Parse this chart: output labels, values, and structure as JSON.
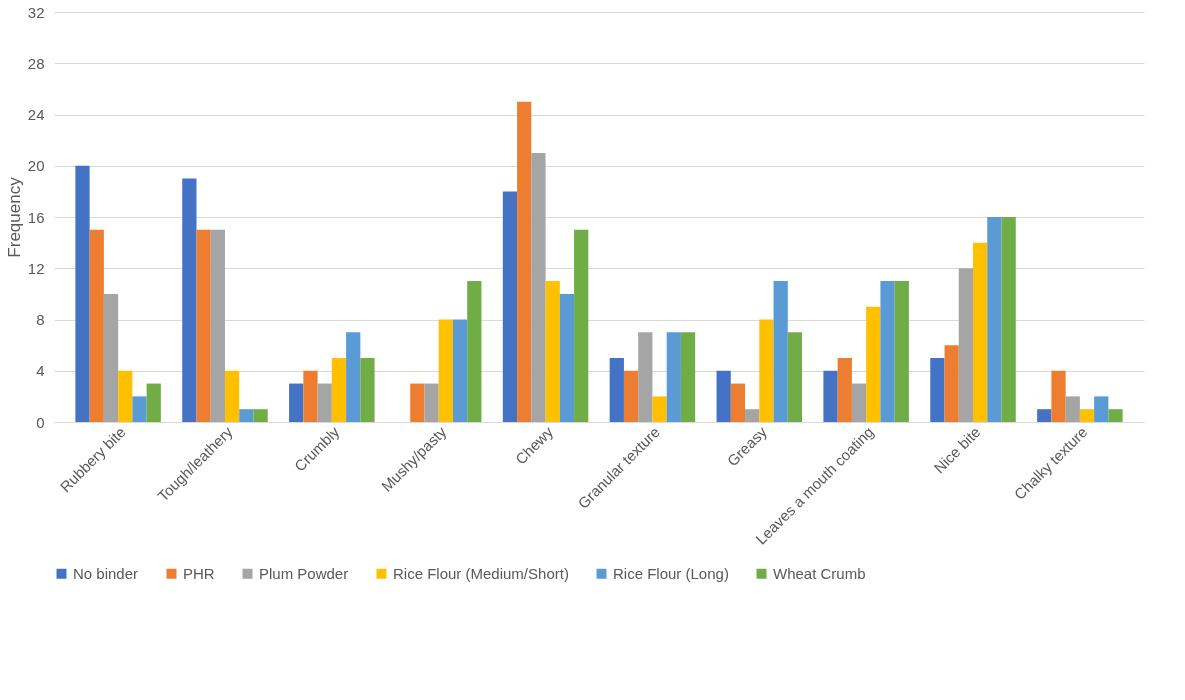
{
  "chart_data": {
    "type": "bar",
    "ylabel": "Frequency",
    "categories": [
      "Rubbery bite",
      "Tough/leathery",
      "Crumbly",
      "Mushy/pasty",
      "Chewy",
      "Granular texture",
      "Greasy",
      "Leaves a mouth coating",
      "Nice bite",
      "Chalky texture"
    ],
    "series": [
      {
        "name": "No binder",
        "color": "#4472c4",
        "values": [
          20,
          19,
          3,
          0,
          18,
          5,
          4,
          4,
          5,
          1
        ]
      },
      {
        "name": "PHR",
        "color": "#ed7d31",
        "values": [
          15,
          15,
          4,
          3,
          25,
          4,
          3,
          5,
          6,
          4
        ]
      },
      {
        "name": "Plum Powder",
        "color": "#a5a5a5",
        "values": [
          10,
          15,
          3,
          3,
          21,
          7,
          1,
          3,
          12,
          2
        ]
      },
      {
        "name": "Rice Flour (Medium/Short)",
        "color": "#ffc000",
        "values": [
          4,
          4,
          5,
          8,
          11,
          2,
          8,
          9,
          14,
          1
        ]
      },
      {
        "name": "Rice Flour (Long)",
        "color": "#5b9bd5",
        "values": [
          2,
          1,
          7,
          8,
          10,
          7,
          11,
          11,
          16,
          2
        ]
      },
      {
        "name": "Wheat Crumb",
        "color": "#70ad47",
        "values": [
          3,
          1,
          5,
          11,
          15,
          7,
          7,
          11,
          16,
          1
        ]
      }
    ],
    "ylim": [
      0,
      32
    ],
    "yticks": [
      0,
      4,
      8,
      12,
      16,
      20,
      24,
      28,
      32
    ],
    "grid": "y",
    "legend": "bottom"
  }
}
